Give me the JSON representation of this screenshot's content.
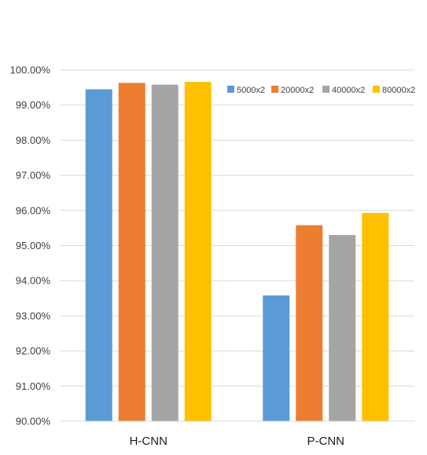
{
  "chart_data": {
    "type": "bar",
    "title": "",
    "xlabel": "",
    "ylabel": "",
    "categories": [
      "H-CNN",
      "P-CNN"
    ],
    "series": [
      {
        "name": "5000x2",
        "values": [
          99.45,
          93.58
        ],
        "color": "#5b9bd5"
      },
      {
        "name": "20000x2",
        "values": [
          99.63,
          95.58
        ],
        "color": "#ed7d31"
      },
      {
        "name": "40000x2",
        "values": [
          99.58,
          95.3
        ],
        "color": "#a5a5a5"
      },
      {
        "name": "80000x2",
        "values": [
          99.66,
          95.93
        ],
        "color": "#ffc000"
      }
    ],
    "ylim": [
      90,
      100
    ],
    "yticks": [
      "90.00%",
      "91.00%",
      "92.00%",
      "93.00%",
      "94.00%",
      "95.00%",
      "96.00%",
      "97.00%",
      "98.00%",
      "99.00%",
      "100.00%"
    ],
    "grid": true,
    "legend_position": "top-right"
  }
}
